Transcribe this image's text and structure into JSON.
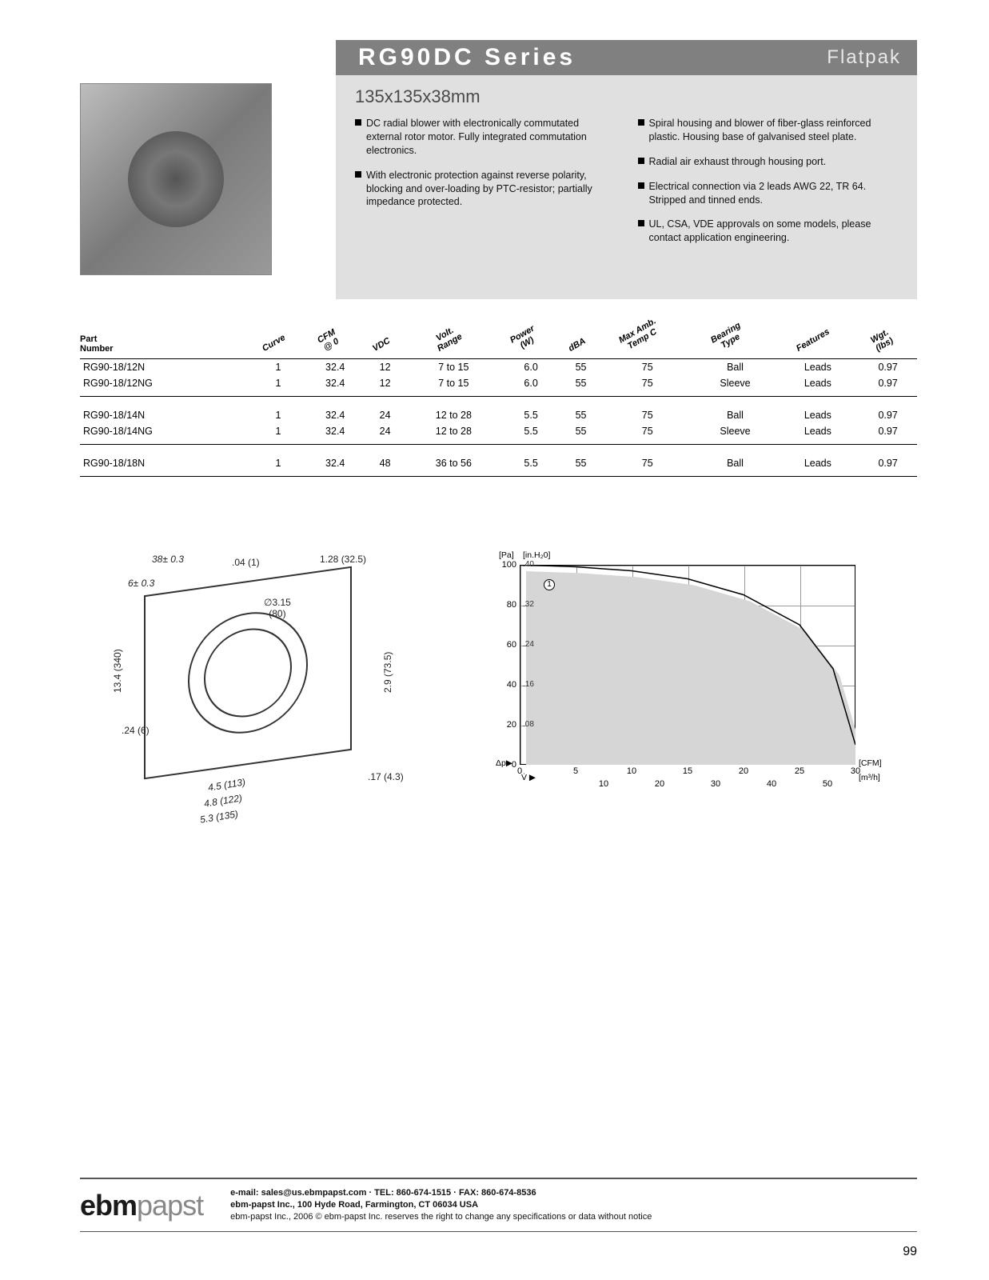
{
  "header": {
    "series": "RG90DC Series",
    "category": "Flatpak",
    "dimensions": "135x135x38mm"
  },
  "bullets": {
    "left": [
      "DC radial blower with electronically commutated external rotor motor. Fully integrated commutation electronics.",
      "With electronic protection against reverse polarity, blocking and over-loading by PTC-resistor; partially impedance protected."
    ],
    "right": [
      "Spiral housing and blower of fiber-glass reinforced plastic. Housing base of galvanised steel plate.",
      "Radial air exhaust through housing port.",
      "Electrical connection via 2 leads AWG 22, TR 64. Stripped and tinned ends.",
      "UL, CSA, VDE approvals on some models, please contact application engineering."
    ]
  },
  "table": {
    "headers": [
      "Part\nNumber",
      "Curve",
      "CFM\n@ 0",
      "VDC",
      "Volt.\nRange",
      "Power\n(W)",
      "dBA",
      "Max Amb.\nTemp C",
      "Bearing\nType",
      "Features",
      "Wgt.\n(lbs)"
    ],
    "groups": [
      [
        [
          "RG90-18/12N",
          "1",
          "32.4",
          "12",
          "7 to 15",
          "6.0",
          "55",
          "75",
          "Ball",
          "Leads",
          "0.97"
        ],
        [
          "RG90-18/12NG",
          "1",
          "32.4",
          "12",
          "7 to 15",
          "6.0",
          "55",
          "75",
          "Sleeve",
          "Leads",
          "0.97"
        ]
      ],
      [
        [
          "RG90-18/14N",
          "1",
          "32.4",
          "24",
          "12 to 28",
          "5.5",
          "55",
          "75",
          "Ball",
          "Leads",
          "0.97"
        ],
        [
          "RG90-18/14NG",
          "1",
          "32.4",
          "24",
          "12 to 28",
          "5.5",
          "55",
          "75",
          "Sleeve",
          "Leads",
          "0.97"
        ]
      ],
      [
        [
          "RG90-18/18N",
          "1",
          "32.4",
          "48",
          "36 to 56",
          "5.5",
          "55",
          "75",
          "Ball",
          "Leads",
          "0.97"
        ]
      ]
    ]
  },
  "drawing": {
    "labels": {
      "d1": "38± 0.3",
      "d2": "6± 0.3",
      "d3": ".04 (1)",
      "d4": "1.28 (32.5)",
      "d5": "∅3.15\n(80)",
      "d6": "13.4 (340)",
      "d7": ".24 (6)",
      "d8": "2.9 (73.5)",
      "d9": "4.5 (113)",
      "d10": "4.8 (122)",
      "d11": "5.3 (135)",
      "d12": ".17 (4.3)"
    }
  },
  "chart": {
    "y_unit_left": "[Pa]",
    "y_unit_right": "[in.H₂0]",
    "x_unit_top": "[CFM]",
    "x_unit_bottom": "[m³/h]",
    "ylabel_sym": "Δp▶",
    "xlabel_sym": "V̇ ▶",
    "y_ticks_pa": [
      100,
      80,
      60,
      40,
      20,
      0
    ],
    "y_ticks_in": [
      ".40",
      ".32",
      ".24",
      ".16",
      ".08",
      ""
    ],
    "x_ticks_cfm": [
      0,
      5,
      10,
      15,
      20,
      25,
      30
    ],
    "x_ticks_m3h": [
      10,
      20,
      30,
      40,
      50
    ],
    "curve_tag": "1",
    "curve_color": "#000000",
    "curve_width": 1.5,
    "shadow_fill": "#d6d6d6",
    "grid_color": "#999999",
    "background": "#ffffff",
    "curve_points": [
      [
        0,
        100
      ],
      [
        5,
        99
      ],
      [
        10,
        97
      ],
      [
        15,
        93
      ],
      [
        20,
        85
      ],
      [
        25,
        70
      ],
      [
        28,
        48
      ],
      [
        30,
        10
      ]
    ],
    "xlim_cfm": [
      0,
      30
    ],
    "ylim_pa": [
      0,
      100
    ]
  },
  "footer": {
    "logo_a": "ebm",
    "logo_b": "papst",
    "line1": "e-mail: sales@us.ebmpapst.com · TEL: 860-674-1515 · FAX: 860-674-8536",
    "line2": "ebm-papst Inc., 100 Hyde Road, Farmington, CT 06034 USA",
    "line3": "ebm-papst Inc., 2006 © ebm-papst Inc. reserves the right to change any specifications or data without notice",
    "pagenum": "99"
  }
}
